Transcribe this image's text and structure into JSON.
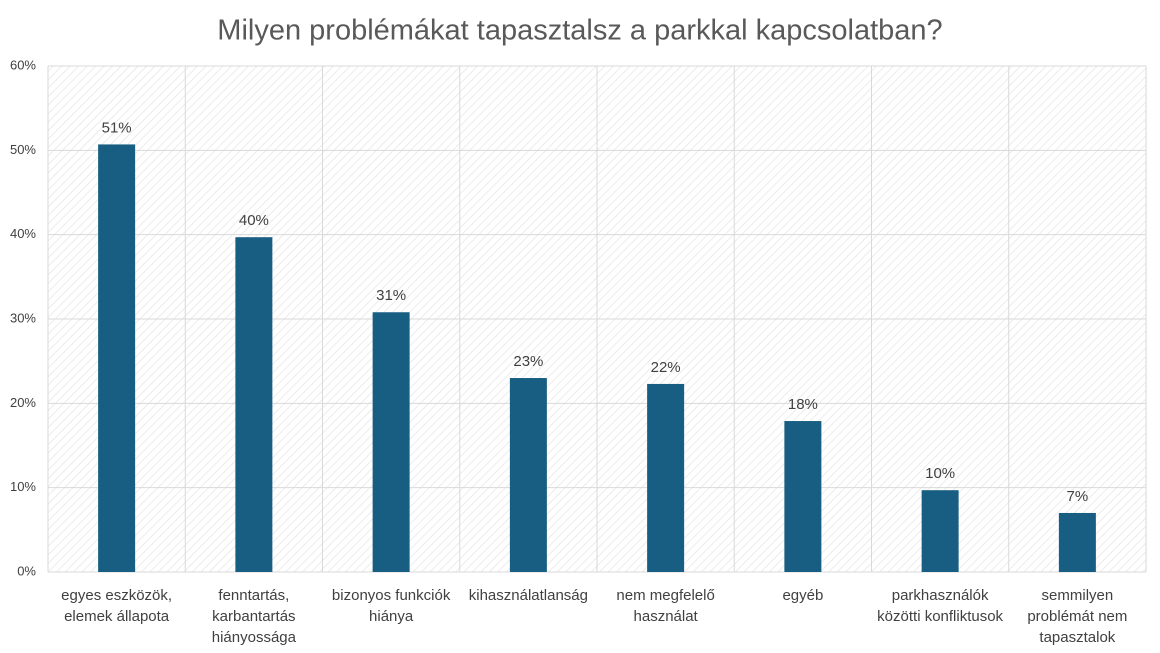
{
  "chart_data": {
    "type": "bar",
    "title": "Milyen problémákat tapasztalsz a parkkal kapcsolatban?",
    "categories": [
      "egyes eszközök, elemek állapota",
      "fenntartás, karbantartás hiányossága",
      "bizonyos funkciók hiánya",
      "kihasználatlanság",
      "nem megfelelő használat",
      "egyéb",
      "parkhasználók közötti konfliktusok",
      "semmilyen problémát nem tapasztalok"
    ],
    "values": [
      50.7,
      39.7,
      30.8,
      23.0,
      22.3,
      17.9,
      9.7,
      7.0
    ],
    "value_labels": [
      "51%",
      "40%",
      "31%",
      "23%",
      "22%",
      "18%",
      "10%",
      "7%"
    ],
    "color": "#175e82",
    "ylim": [
      0,
      60
    ],
    "yticks": [
      {
        "value": 0,
        "label": "0%"
      },
      {
        "value": 10,
        "label": "10%"
      },
      {
        "value": 20,
        "label": "20%"
      },
      {
        "value": 30,
        "label": "30%"
      },
      {
        "value": 40,
        "label": "40%"
      },
      {
        "value": 50,
        "label": "50%"
      },
      {
        "value": 60,
        "label": "60%"
      }
    ],
    "grid": true
  }
}
